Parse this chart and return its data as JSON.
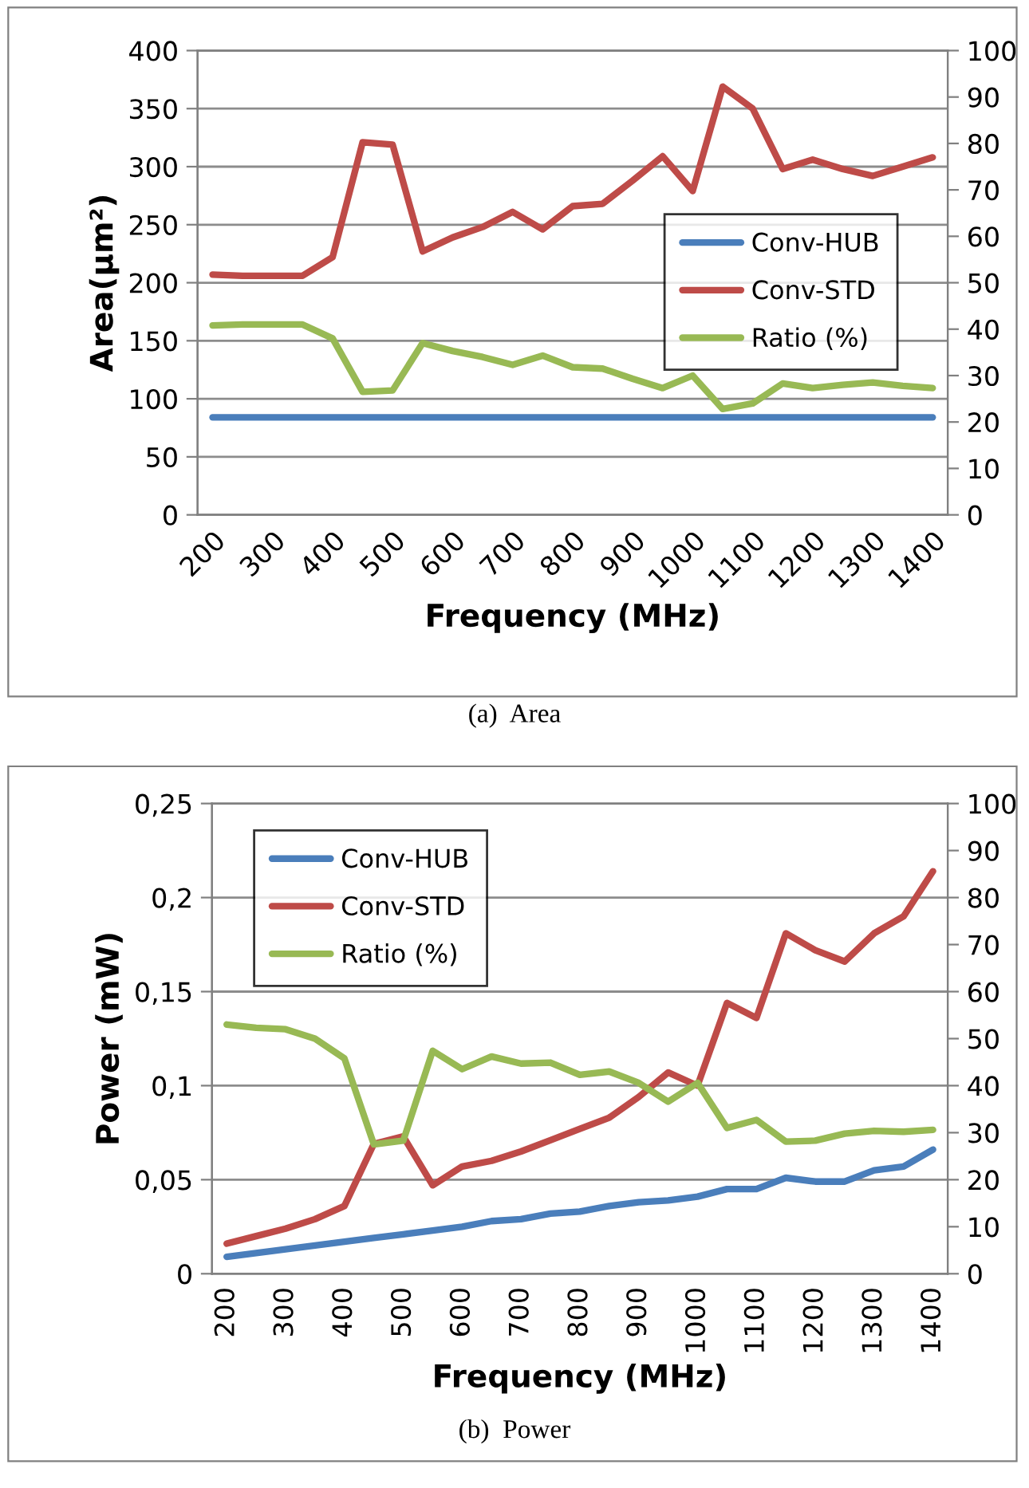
{
  "chart_data": [
    {
      "type": "line",
      "xlabel": "Frequency (MHz)",
      "ylabel": "Area(µm²)",
      "categories": [
        "200",
        null,
        "300",
        null,
        "400",
        null,
        "500",
        null,
        "600",
        null,
        "700",
        null,
        "800",
        null,
        "900",
        null,
        "1000",
        null,
        "1100",
        null,
        "1200",
        null,
        "1300",
        null,
        "1400"
      ],
      "series": [
        {
          "name": "Conv-HUB",
          "color": "#4a7ebb",
          "values": [
            84,
            84,
            84,
            84,
            84,
            84,
            84,
            84,
            84,
            84,
            84,
            84,
            84,
            84,
            84,
            84,
            84,
            84,
            84,
            84,
            84,
            84,
            84,
            84,
            84
          ]
        },
        {
          "name": "Conv-STD",
          "color": "#be4b48",
          "values": [
            207,
            206,
            206,
            206,
            222,
            321,
            319,
            227,
            239,
            248,
            261,
            246,
            266,
            268,
            288,
            309,
            279,
            369,
            350,
            298,
            306,
            298,
            292,
            300,
            308
          ]
        },
        {
          "name": "Ratio (%)",
          "color": "#98b954",
          "axis": "y2",
          "values": [
            40.8,
            41,
            41,
            41,
            38,
            26.5,
            26.8,
            37,
            35.3,
            34,
            32.3,
            34.3,
            31.8,
            31.5,
            29.3,
            27.3,
            30,
            22.8,
            24,
            28.3,
            27.3,
            28,
            28.5,
            27.8,
            27.3
          ]
        }
      ],
      "ylim": [
        0,
        400
      ],
      "yticks": [
        0,
        50,
        100,
        150,
        200,
        250,
        300,
        350,
        400
      ],
      "y2lim": [
        0,
        100
      ],
      "y2ticks": [
        0,
        10,
        20,
        30,
        40,
        50,
        60,
        70,
        80,
        90,
        100
      ],
      "grid": "y",
      "legend": "right",
      "annotations": [
        "(a)  Area"
      ]
    },
    {
      "type": "line",
      "xlabel": "Frequency (MHz)",
      "ylabel": "Power (mW)",
      "categories": [
        "200",
        null,
        "300",
        null,
        "400",
        null,
        "500",
        null,
        "600",
        null,
        "700",
        null,
        "800",
        null,
        "900",
        null,
        "1000",
        null,
        "1100",
        null,
        "1200",
        null,
        "1300",
        null,
        "1400"
      ],
      "series": [
        {
          "name": "Conv-HUB",
          "color": "#4a7ebb",
          "values": [
            0.009,
            0.011,
            0.013,
            0.015,
            0.017,
            0.019,
            0.021,
            0.023,
            0.025,
            0.028,
            0.029,
            0.032,
            0.033,
            0.036,
            0.038,
            0.039,
            0.041,
            0.045,
            0.045,
            0.051,
            0.049,
            0.049,
            0.055,
            0.057,
            0.066
          ]
        },
        {
          "name": "Conv-STD",
          "color": "#be4b48",
          "values": [
            0.016,
            0.02,
            0.024,
            0.029,
            0.036,
            0.069,
            0.073,
            0.047,
            0.057,
            0.06,
            0.065,
            0.071,
            0.077,
            0.083,
            0.094,
            0.107,
            0.1,
            0.144,
            0.136,
            0.181,
            0.172,
            0.166,
            0.181,
            0.19,
            0.214
          ]
        },
        {
          "name": "Ratio (%)",
          "color": "#98b954",
          "axis": "y2",
          "values": [
            53,
            52.3,
            52,
            50,
            45.8,
            27.5,
            28.3,
            47.4,
            43.5,
            46.2,
            44.7,
            44.9,
            42.3,
            43,
            40.6,
            36.6,
            40.6,
            31,
            32.7,
            28.1,
            28.3,
            29.8,
            30.4,
            30.2,
            30.6
          ]
        }
      ],
      "ylim": [
        0,
        0.25
      ],
      "yticks": [
        0,
        {
          "value": 0.05,
          "label": "0,05"
        },
        {
          "value": 0.1,
          "label": "0,1"
        },
        {
          "value": 0.15,
          "label": "0,15"
        },
        {
          "value": 0.2,
          "label": "0,2"
        },
        {
          "value": 0.25,
          "label": "0,25"
        }
      ],
      "y2lim": [
        0,
        100
      ],
      "y2ticks": [
        0,
        10,
        20,
        30,
        40,
        50,
        60,
        70,
        80,
        90,
        100
      ],
      "grid": "y",
      "legend": "top left",
      "annotations": [
        "(b)  Power"
      ]
    }
  ]
}
